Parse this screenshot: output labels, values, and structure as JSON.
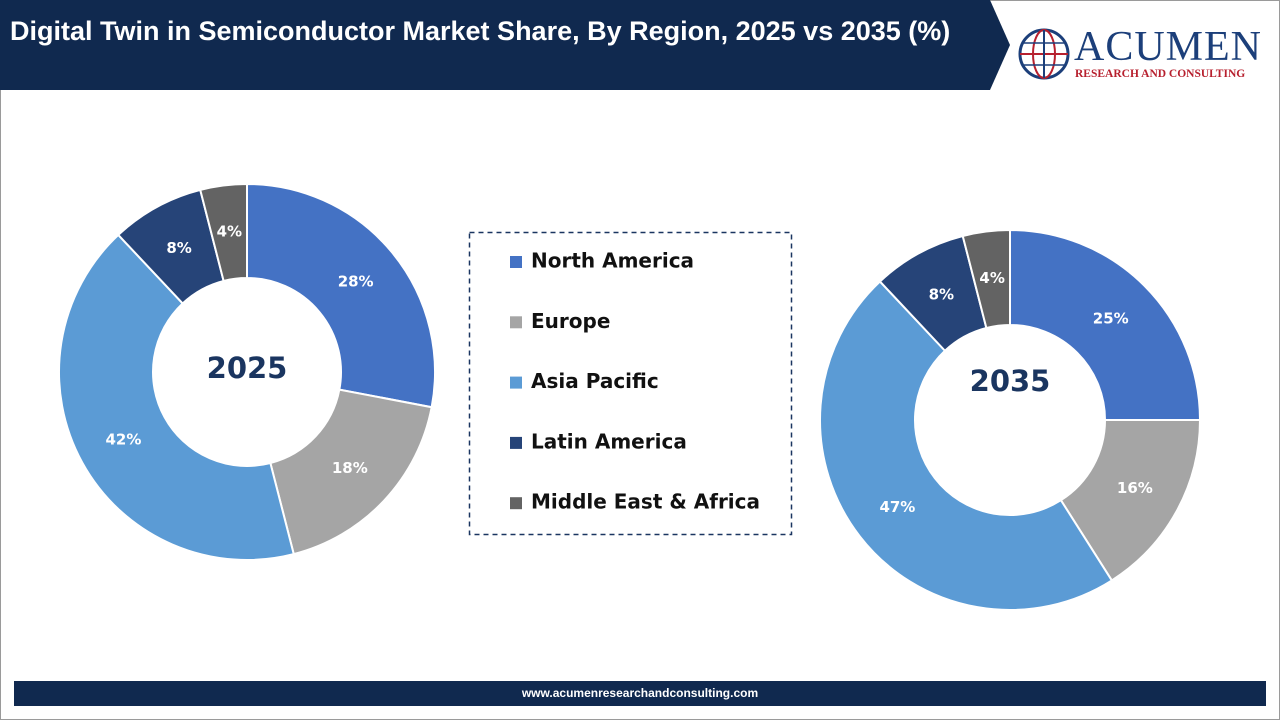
{
  "header": {
    "title": "Digital Twin in Semiconductor Market Share, By Region, 2025 vs 2035 (%)",
    "logo": {
      "name": "ACUMEN",
      "tagline": "RESEARCH AND CONSULTING"
    }
  },
  "chart_data": [
    {
      "type": "pie",
      "center_label": "2025",
      "categories": [
        "North America",
        "Europe",
        "Asia Pacific",
        "Latin America",
        "Middle East & Africa"
      ],
      "values": [
        28,
        18,
        42,
        8,
        4
      ],
      "value_labels": [
        "28%",
        "18%",
        "42%",
        "8%",
        "4%"
      ],
      "colors": [
        "#4472c4",
        "#a5a5a5",
        "#5b9bd5",
        "#264478",
        "#636363"
      ]
    },
    {
      "type": "pie",
      "center_label": "2035",
      "categories": [
        "North America",
        "Europe",
        "Asia Pacific",
        "Latin America",
        "Middle East & Africa"
      ],
      "values": [
        25,
        16,
        47,
        8,
        4
      ],
      "value_labels": [
        "25%",
        "16%",
        "47%",
        "8%",
        "4%"
      ],
      "colors": [
        "#4472c4",
        "#a5a5a5",
        "#5b9bd5",
        "#264478",
        "#636363"
      ]
    }
  ],
  "footer": {
    "url": "www.acumenresearchandconsulting.com"
  }
}
